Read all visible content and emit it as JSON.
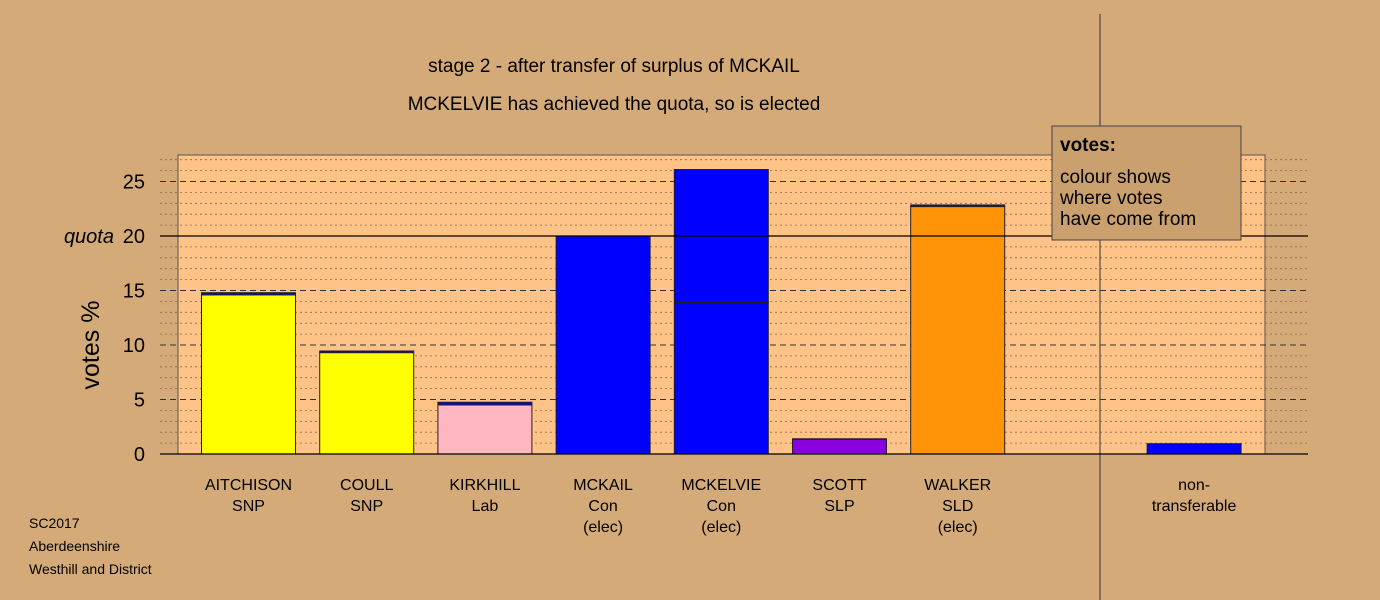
{
  "chart_data": {
    "type": "bar",
    "title": "stage 2 - after transfer of surplus of MCKAIL",
    "subtitle": "MCKELVIE has achieved the quota, so is elected",
    "ylabel": "votes %",
    "quota_label": "quota",
    "quota": 20,
    "ylim": [
      0,
      27.5
    ],
    "yticks": [
      0,
      5,
      10,
      15,
      20,
      25
    ],
    "grid": true,
    "legend": {
      "position": "top-right",
      "title": "votes:",
      "lines": [
        "colour shows",
        "where votes",
        "have come from"
      ]
    },
    "categories": [
      {
        "lines": [
          "AITCHISON",
          "SNP"
        ],
        "segments": [
          {
            "value": 14.6,
            "color": "#FFFF00"
          },
          {
            "value": 0.2,
            "color": "#0000FF"
          }
        ]
      },
      {
        "lines": [
          "COULL",
          "SNP"
        ],
        "segments": [
          {
            "value": 9.3,
            "color": "#FFFF00"
          },
          {
            "value": 0.15,
            "color": "#0000FF"
          }
        ]
      },
      {
        "lines": [
          "KIRKHILL",
          "Lab"
        ],
        "segments": [
          {
            "value": 4.5,
            "color": "#FFB6C1"
          },
          {
            "value": 0.25,
            "color": "#0000FF"
          }
        ]
      },
      {
        "lines": [
          "MCKAIL",
          "Con",
          "(elec)"
        ],
        "segments": [
          {
            "value": 20.0,
            "color": "#0000FF"
          }
        ]
      },
      {
        "lines": [
          "MCKELVIE",
          "Con",
          "(elec)"
        ],
        "segments": [
          {
            "value": 13.9,
            "color": "#0000FF"
          },
          {
            "value": 12.2,
            "color": "#0000FF"
          }
        ]
      },
      {
        "lines": [
          "SCOTT",
          "SLP"
        ],
        "segments": [
          {
            "value": 1.35,
            "color": "#8A00E0"
          },
          {
            "value": 0.05,
            "color": "#0000FF"
          }
        ]
      },
      {
        "lines": [
          "WALKER",
          "SLD",
          "(elec)"
        ],
        "segments": [
          {
            "value": 22.7,
            "color": "#FF9408"
          },
          {
            "value": 0.15,
            "color": "#0000FF"
          }
        ]
      },
      {
        "lines": [
          "non-",
          "transferable"
        ],
        "segments": [
          {
            "value": 0.95,
            "color": "#0000FF"
          }
        ],
        "separated": true
      }
    ]
  },
  "footer": {
    "line1": "SC2017",
    "line2": "Aberdeenshire",
    "line3": "Westhill and District"
  }
}
